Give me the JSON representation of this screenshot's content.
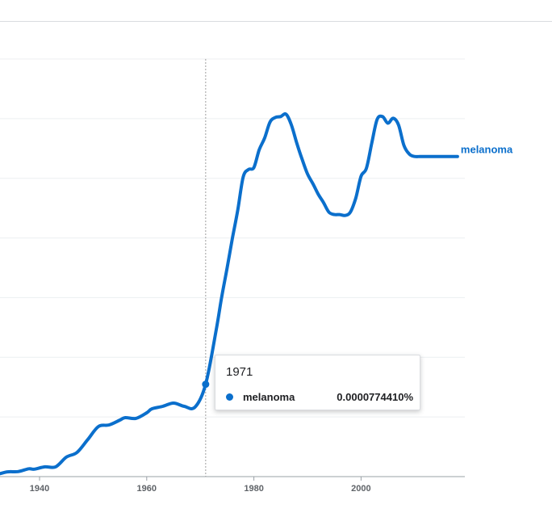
{
  "colors": {
    "series": "#1a73e8",
    "line": "#0b6fcc",
    "grid": "#eceff1",
    "axis": "#9aa0a6",
    "text": "#202124",
    "muted": "#5f6368"
  },
  "chart_data": {
    "type": "line",
    "title": "",
    "xlabel": "",
    "ylabel": "",
    "xlim": [
      1932,
      2019
    ],
    "ylim": [
      0,
      0.00035
    ],
    "x_ticks": [
      1940,
      1960,
      1980,
      2000
    ],
    "gridlines": 7,
    "legend": "right-of-line-end",
    "series": [
      {
        "name": "melanoma",
        "x": [
          1932,
          1934,
          1936,
          1938,
          1939,
          1941,
          1943,
          1945,
          1947,
          1949,
          1951,
          1953,
          1955,
          1956,
          1958,
          1960,
          1961,
          1963,
          1965,
          1967,
          1969,
          1971,
          1973,
          1974,
          1975,
          1976,
          1977,
          1978,
          1979,
          1980,
          1981,
          1982,
          1983,
          1984,
          1985,
          1986,
          1987,
          1988,
          1989,
          1990,
          1991,
          1992,
          1993,
          1994,
          1995,
          1996,
          1997,
          1998,
          1999,
          2000,
          2001,
          2002,
          2003,
          2004,
          2005,
          2006,
          2007,
          2008,
          2009,
          2010,
          2011,
          2012,
          2013,
          2014,
          2015,
          2016,
          2017,
          2018
        ],
        "values": [
          1.7e-06,
          4e-06,
          4.2e-06,
          6.6e-06,
          6.2e-06,
          8.2e-06,
          8.2e-06,
          1.63e-05,
          2.03e-05,
          3.11e-05,
          4.2e-05,
          4.33e-05,
          4.74e-05,
          4.94e-05,
          4.88e-05,
          5.35e-05,
          5.69e-05,
          5.89e-05,
          6.16e-05,
          5.89e-05,
          5.82e-05,
          7.74e-05,
          0.0001237,
          0.0001508,
          0.0001747,
          0.0001999,
          0.0002237,
          0.000251,
          0.0002574,
          0.000259,
          0.000274,
          0.0002837,
          0.000297,
          0.000301,
          0.0003017,
          0.0003037,
          0.0002946,
          0.0002796,
          0.0002659,
          0.0002537,
          0.0002456,
          0.0002367,
          0.0002296,
          0.0002216,
          0.0002196,
          0.0002196,
          0.0002189,
          0.0002216,
          0.0002332,
          0.0002517,
          0.0002584,
          0.0002796,
          0.0002993,
          0.0003017,
          0.0002962,
          0.0003003,
          0.0002946,
          0.0002776,
          0.0002703,
          0.0002683,
          0.0002683,
          0.0002683,
          0.0002683,
          0.0002683,
          0.0002683,
          0.0002683,
          0.0002683,
          0.0002683
        ]
      }
    ],
    "hover": {
      "year": "1971",
      "series_name": "melanoma",
      "value_label": "0.0000774410%"
    },
    "series_label": "melanoma"
  }
}
